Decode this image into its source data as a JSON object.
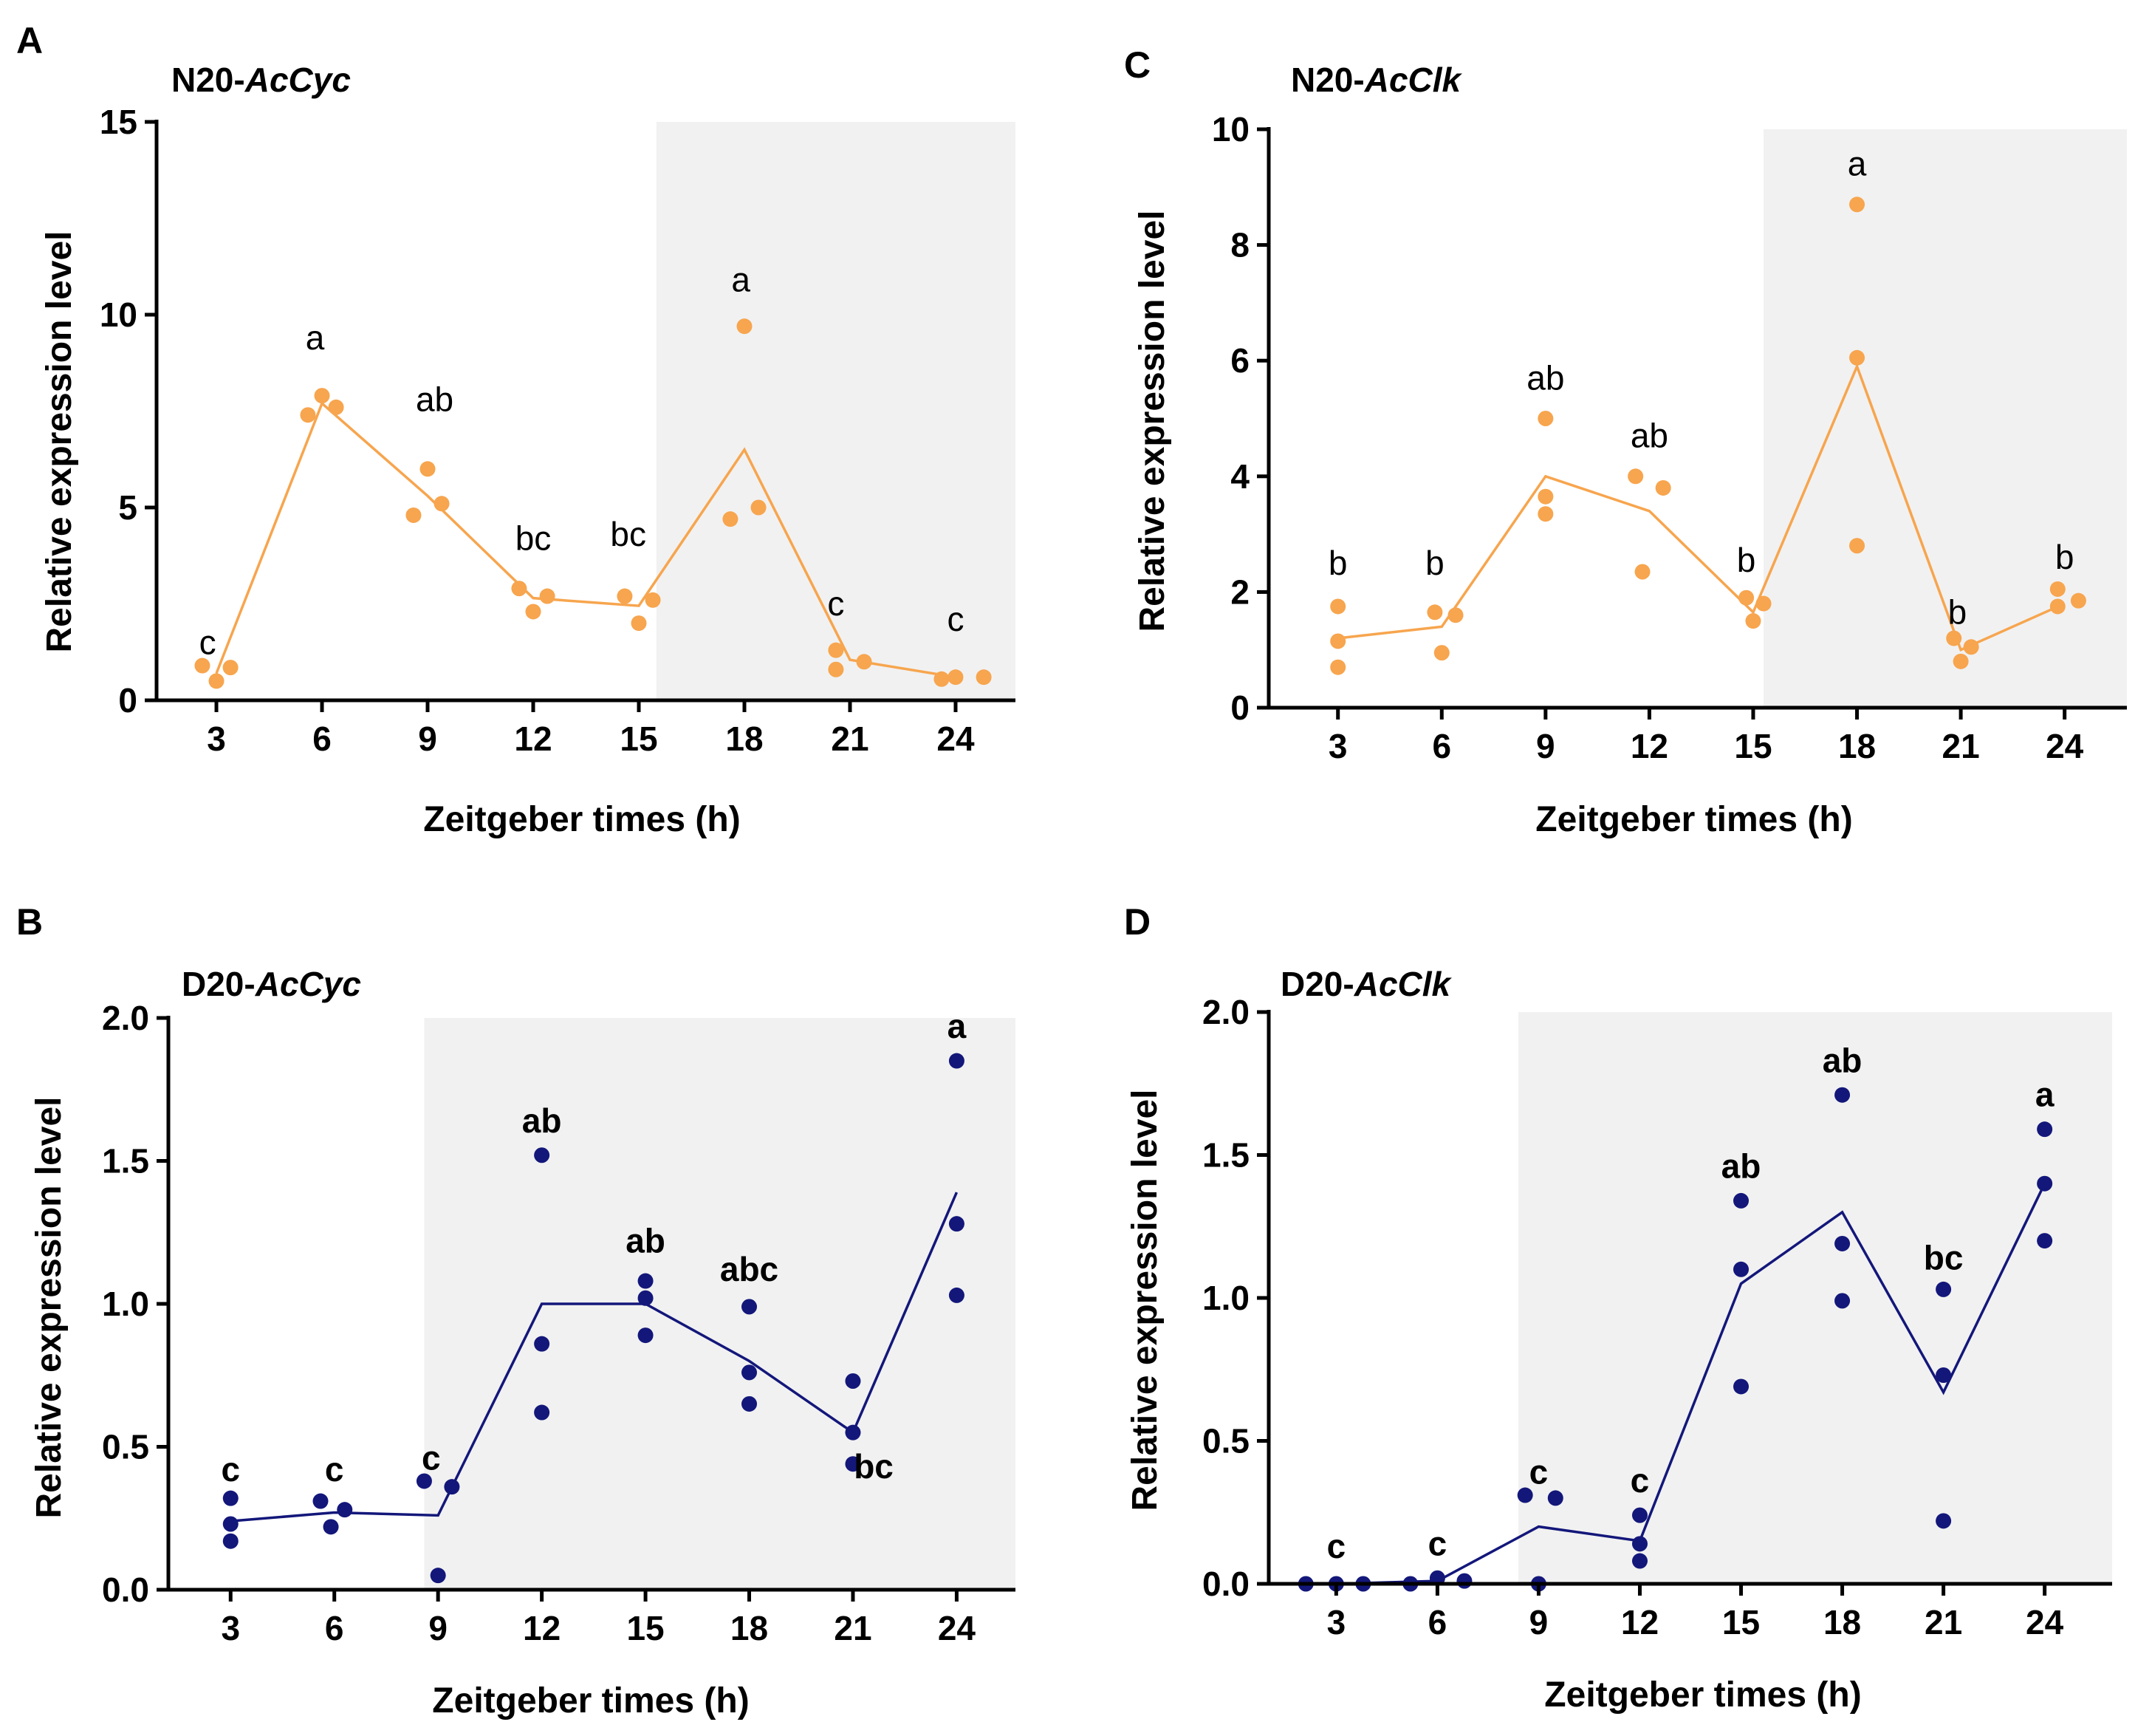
{
  "colors": {
    "orange": "#f7a54e",
    "navy": "#13177a",
    "shade": "#f1f1f1"
  },
  "chart_data": [
    {
      "panel": "A",
      "type": "scatter",
      "title_prefix": "N20-",
      "title_gene": "AcCyc",
      "xlabel": "Zeitgeber times (h)",
      "ylabel": "Relative expression level",
      "x": [
        3,
        6,
        9,
        12,
        15,
        18,
        21,
        24
      ],
      "xlim": [
        1.3,
        25.7
      ],
      "ylim": [
        0,
        15
      ],
      "yticks": [
        0,
        5,
        10,
        15
      ],
      "ytick_labels": [
        "0",
        "5",
        "10",
        "15"
      ],
      "shaded_from_x": 15.5,
      "color": "orange",
      "bold_letters": false,
      "points": [
        [
          [
            2.6,
            0.9
          ],
          [
            3.0,
            0.5
          ],
          [
            3.4,
            0.85
          ]
        ],
        [
          [
            5.6,
            7.4
          ],
          [
            6.0,
            7.9
          ],
          [
            6.4,
            7.6
          ]
        ],
        [
          [
            8.6,
            4.8
          ],
          [
            9.0,
            6.0
          ],
          [
            9.4,
            5.1
          ]
        ],
        [
          [
            11.6,
            2.9
          ],
          [
            12.0,
            2.3
          ],
          [
            12.4,
            2.7
          ]
        ],
        [
          [
            14.6,
            2.7
          ],
          [
            15.0,
            2.0
          ],
          [
            15.4,
            2.6
          ]
        ],
        [
          [
            17.6,
            4.7
          ],
          [
            18.0,
            9.7
          ],
          [
            18.4,
            5.0
          ]
        ],
        [
          [
            20.6,
            1.3
          ],
          [
            20.6,
            0.8
          ],
          [
            21.4,
            1.0
          ]
        ],
        [
          [
            23.6,
            0.55
          ],
          [
            24.0,
            0.6
          ],
          [
            24.8,
            0.6
          ]
        ]
      ],
      "means": [
        0.7,
        7.7,
        5.3,
        2.65,
        2.45,
        6.5,
        1.05,
        0.6
      ],
      "letters": [
        "c",
        "a",
        "ab",
        "bc",
        "bc",
        "a",
        "c",
        "c"
      ],
      "letter_y": [
        1.2,
        9.1,
        7.5,
        3.9,
        4.0,
        10.6,
        2.2,
        1.8
      ],
      "letter_dx": [
        -0.25,
        -0.2,
        0.2,
        0.0,
        -0.3,
        -0.1,
        -0.4,
        0.0
      ]
    },
    {
      "panel": "C",
      "type": "scatter",
      "title_prefix": "N20-",
      "title_gene": "AcClk",
      "xlabel": "Zeitgeber times (h)",
      "ylabel": "Relative expression level",
      "x": [
        3,
        6,
        9,
        12,
        15,
        18,
        21,
        24
      ],
      "xlim": [
        1.0,
        25.8
      ],
      "ylim": [
        0,
        10
      ],
      "yticks": [
        0,
        2,
        4,
        6,
        8,
        10
      ],
      "ytick_labels": [
        "0",
        "2",
        "4",
        "6",
        "8",
        "10"
      ],
      "shaded_from_x": 15.3,
      "color": "orange",
      "bold_letters": false,
      "points": [
        [
          [
            3.0,
            1.75
          ],
          [
            3.0,
            1.15
          ],
          [
            3.0,
            0.7
          ]
        ],
        [
          [
            5.8,
            1.65
          ],
          [
            6.0,
            0.95
          ],
          [
            6.4,
            1.6
          ]
        ],
        [
          [
            9.0,
            5.0
          ],
          [
            9.0,
            3.65
          ],
          [
            9.0,
            3.35
          ]
        ],
        [
          [
            11.6,
            4.0
          ],
          [
            11.8,
            2.35
          ],
          [
            12.4,
            3.8
          ]
        ],
        [
          [
            14.8,
            1.9
          ],
          [
            15.0,
            1.5
          ],
          [
            15.3,
            1.8
          ]
        ],
        [
          [
            18.0,
            8.7
          ],
          [
            18.0,
            6.05
          ],
          [
            18.0,
            2.8
          ]
        ],
        [
          [
            20.8,
            1.2
          ],
          [
            21.0,
            0.8
          ],
          [
            21.3,
            1.05
          ]
        ],
        [
          [
            23.8,
            2.05
          ],
          [
            23.8,
            1.75
          ],
          [
            24.4,
            1.85
          ]
        ]
      ],
      "means": [
        1.2,
        1.4,
        4.0,
        3.4,
        1.65,
        5.9,
        1.0,
        1.8
      ],
      "letters": [
        "b",
        "b",
        "ab",
        "ab",
        "b",
        "a",
        "b",
        "b"
      ],
      "letter_y": [
        2.3,
        2.3,
        5.5,
        4.5,
        2.35,
        9.2,
        1.45,
        2.4
      ],
      "letter_dx": [
        0.0,
        -0.2,
        0.0,
        0.0,
        -0.2,
        0.0,
        -0.1,
        0.0
      ]
    },
    {
      "panel": "B",
      "type": "scatter",
      "title_prefix": "D20-",
      "title_gene": "AcCyc",
      "xlabel": "Zeitgeber times (h)",
      "ylabel": "Relative expression level",
      "x": [
        3,
        6,
        9,
        12,
        15,
        18,
        21,
        24
      ],
      "xlim": [
        1.2,
        25.7
      ],
      "ylim": [
        0,
        2.0
      ],
      "yticks": [
        0,
        0.5,
        1.0,
        1.5,
        2.0
      ],
      "ytick_labels": [
        "0.0",
        "0.5",
        "1.0",
        "1.5",
        "2.0"
      ],
      "shaded_from_x": 8.6,
      "color": "navy",
      "bold_letters": true,
      "points": [
        [
          [
            3.0,
            0.32
          ],
          [
            3.0,
            0.23
          ],
          [
            3.0,
            0.17
          ]
        ],
        [
          [
            5.6,
            0.31
          ],
          [
            5.9,
            0.22
          ],
          [
            6.3,
            0.28
          ]
        ],
        [
          [
            8.6,
            0.38
          ],
          [
            9.0,
            0.05
          ],
          [
            9.4,
            0.36
          ]
        ],
        [
          [
            12.0,
            1.52
          ],
          [
            12.0,
            0.86
          ],
          [
            12.0,
            0.62
          ]
        ],
        [
          [
            15.0,
            1.08
          ],
          [
            15.0,
            1.02
          ],
          [
            15.0,
            0.89
          ]
        ],
        [
          [
            18.0,
            0.99
          ],
          [
            18.0,
            0.76
          ],
          [
            18.0,
            0.65
          ]
        ],
        [
          [
            21.0,
            0.73
          ],
          [
            21.0,
            0.55
          ],
          [
            21.0,
            0.44
          ]
        ],
        [
          [
            24.0,
            1.85
          ],
          [
            24.0,
            1.28
          ],
          [
            24.0,
            1.03
          ]
        ]
      ],
      "means": [
        0.24,
        0.27,
        0.26,
        1.0,
        1.0,
        0.8,
        0.55,
        1.39
      ],
      "letters": [
        "c",
        "c",
        "c",
        "ab",
        "ab",
        "abc",
        "bc",
        "a"
      ],
      "letter_y": [
        0.38,
        0.38,
        0.42,
        1.6,
        1.18,
        1.08,
        0.39,
        1.93
      ],
      "letter_dx": [
        0.0,
        0.0,
        -0.2,
        0.0,
        0.0,
        0.0,
        0.6,
        0.0
      ]
    },
    {
      "panel": "D",
      "type": "scatter",
      "title_prefix": "D20-",
      "title_gene": "AcClk",
      "xlabel": "Zeitgeber times (h)",
      "ylabel": "Relative expression level",
      "x": [
        3,
        6,
        9,
        12,
        15,
        18,
        21,
        24
      ],
      "xlim": [
        1.0,
        26.0
      ],
      "ylim": [
        0,
        2.0
      ],
      "yticks": [
        0,
        0.5,
        1.0,
        1.5,
        2.0
      ],
      "ytick_labels": [
        "0.0",
        "0.5",
        "1.0",
        "1.5",
        "2.0"
      ],
      "shaded_from_x": 8.4,
      "color": "navy",
      "bold_letters": true,
      "points": [
        [
          [
            2.1,
            0.0
          ],
          [
            3.0,
            0.0
          ],
          [
            3.8,
            0.0
          ]
        ],
        [
          [
            5.2,
            0.0
          ],
          [
            6.0,
            0.02
          ],
          [
            6.8,
            0.01
          ]
        ],
        [
          [
            8.6,
            0.31
          ],
          [
            9.0,
            0.0
          ],
          [
            9.5,
            0.3
          ]
        ],
        [
          [
            12.0,
            0.24
          ],
          [
            12.0,
            0.14
          ],
          [
            12.0,
            0.08
          ]
        ],
        [
          [
            15.0,
            1.34
          ],
          [
            15.0,
            1.1
          ],
          [
            15.0,
            0.69
          ]
        ],
        [
          [
            18.0,
            1.71
          ],
          [
            18.0,
            1.19
          ],
          [
            18.0,
            0.99
          ]
        ],
        [
          [
            21.0,
            1.03
          ],
          [
            21.0,
            0.73
          ],
          [
            21.0,
            0.22
          ]
        ],
        [
          [
            24.0,
            1.59
          ],
          [
            24.0,
            1.4
          ],
          [
            24.0,
            1.2
          ]
        ]
      ],
      "means": [
        0.0,
        0.01,
        0.2,
        0.15,
        1.05,
        1.3,
        0.67,
        1.4
      ],
      "letters": [
        "c",
        "c",
        "c",
        "c",
        "ab",
        "ab",
        "bc",
        "a"
      ],
      "letter_y": [
        0.09,
        0.1,
        0.35,
        0.32,
        1.42,
        1.79,
        1.1,
        1.67
      ],
      "letter_dx": [
        0.0,
        0.0,
        0.0,
        0.0,
        0.0,
        0.0,
        0.0,
        0.0
      ]
    }
  ]
}
